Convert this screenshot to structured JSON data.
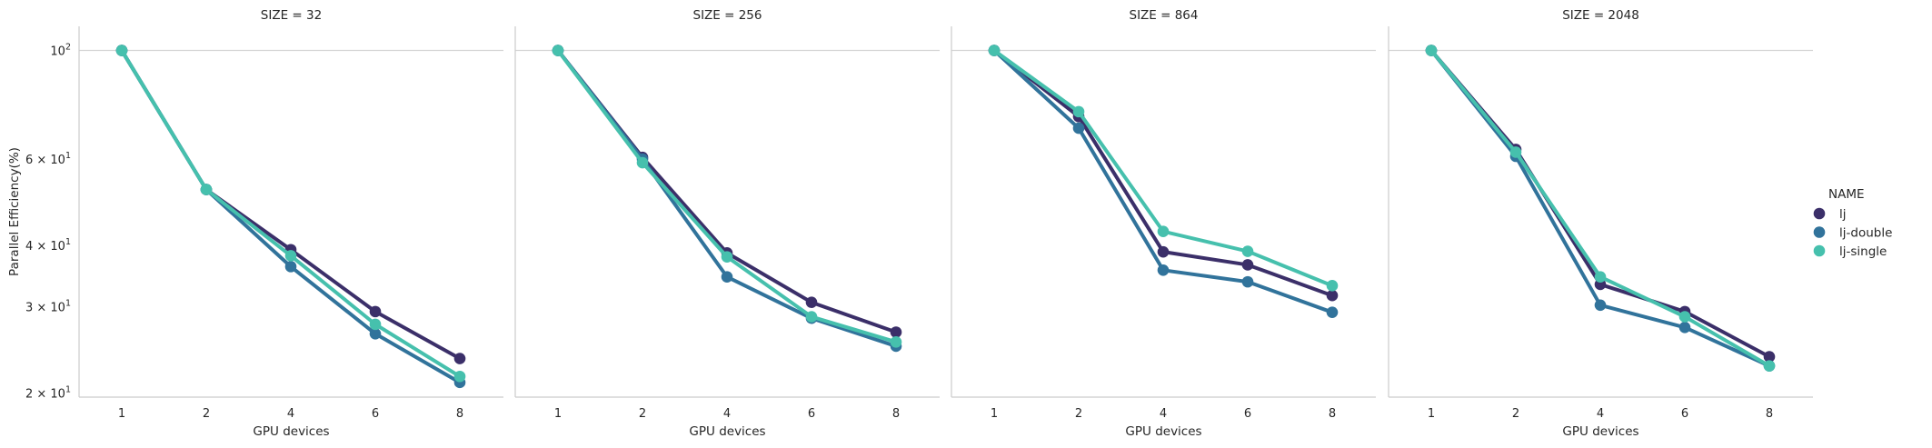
{
  "chart_data": {
    "type": "line",
    "ylabel": "Parallel Efficiency(%)",
    "xlabel": "GPU devices",
    "y_scale": "log",
    "ylim": [
      19.6,
      112
    ],
    "y_ticks": [
      {
        "value": 100,
        "base": "10",
        "exp": "2"
      },
      {
        "value": 60,
        "base": "6 × 10",
        "exp": "1"
      },
      {
        "value": 40,
        "base": "4 × 10",
        "exp": "1"
      },
      {
        "value": 30,
        "base": "3 × 10",
        "exp": "1"
      },
      {
        "value": 20,
        "base": "2 × 10",
        "exp": "1"
      }
    ],
    "categories": [
      "1",
      "2",
      "4",
      "6",
      "8"
    ],
    "grid": "y-major",
    "legend": {
      "title": "NAME",
      "placement": "right"
    },
    "series_colors": {
      "lj": "#3b2f69",
      "lj-double": "#31739b",
      "lj-single": "#46c0ad"
    },
    "panels": [
      {
        "title": "SIZE = 32",
        "series": [
          {
            "name": "lj",
            "values": [
              100,
              52,
              39.2,
              29.3,
              23.5
            ]
          },
          {
            "name": "lj-double",
            "values": [
              100,
              52,
              36.2,
              26.4,
              21.0
            ]
          },
          {
            "name": "lj-single",
            "values": [
              100,
              52,
              38.1,
              27.6,
              21.6
            ]
          }
        ]
      },
      {
        "title": "SIZE = 256",
        "series": [
          {
            "name": "lj",
            "values": [
              100,
              60.5,
              38.6,
              30.6,
              26.6
            ]
          },
          {
            "name": "lj-double",
            "values": [
              100,
              60.0,
              34.5,
              28.4,
              24.9
            ]
          },
          {
            "name": "lj-single",
            "values": [
              100,
              59.0,
              37.9,
              28.6,
              25.4
            ]
          }
        ]
      },
      {
        "title": "SIZE = 864",
        "series": [
          {
            "name": "lj",
            "values": [
              100,
              73.3,
              38.8,
              36.5,
              31.6
            ]
          },
          {
            "name": "lj-double",
            "values": [
              100,
              69.4,
              35.6,
              33.7,
              29.2
            ]
          },
          {
            "name": "lj-single",
            "values": [
              100,
              75.0,
              42.7,
              38.9,
              33.1
            ]
          }
        ]
      },
      {
        "title": "SIZE = 2048",
        "series": [
          {
            "name": "lj",
            "values": [
              100,
              62.8,
              33.3,
              29.3,
              23.7
            ]
          },
          {
            "name": "lj-double",
            "values": [
              100,
              60.8,
              30.2,
              27.2,
              22.7
            ]
          },
          {
            "name": "lj-single",
            "values": [
              100,
              62.0,
              34.5,
              28.6,
              22.7
            ]
          }
        ]
      }
    ]
  }
}
